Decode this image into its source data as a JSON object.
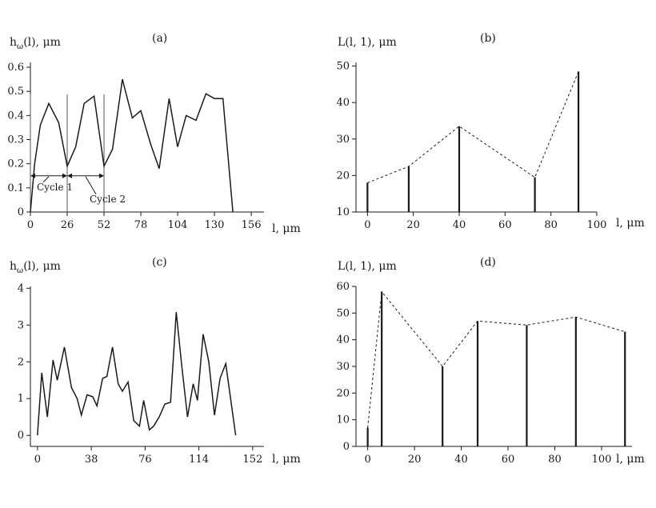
{
  "chart_data": [
    {
      "id": "a",
      "type": "line",
      "panel_label": "(a)",
      "ylabel": "h_ω(l), μm",
      "xlabel": "l, μm",
      "xlim": [
        0,
        165
      ],
      "ylim": [
        0,
        0.62
      ],
      "xticks": [
        0,
        26,
        52,
        78,
        104,
        130,
        156
      ],
      "yticks": [
        0,
        0.1,
        0.2,
        0.3,
        0.4,
        0.5,
        0.6
      ],
      "x": [
        0,
        3,
        7,
        13,
        20,
        26,
        32,
        38,
        45,
        52,
        58,
        65,
        72,
        78,
        85,
        91,
        98,
        104,
        110,
        117,
        124,
        130,
        136,
        143
      ],
      "values": [
        0,
        0.2,
        0.36,
        0.45,
        0.37,
        0.19,
        0.27,
        0.45,
        0.48,
        0.19,
        0.26,
        0.55,
        0.39,
        0.42,
        0.28,
        0.18,
        0.47,
        0.27,
        0.4,
        0.38,
        0.49,
        0.47,
        0.47,
        0
      ],
      "markers": [
        0,
        26,
        52
      ],
      "annotations": [
        {
          "label": "Cycle 1",
          "from": 0,
          "to": 26,
          "y": 0.15
        },
        {
          "label": "Cycle 2",
          "from": 26,
          "to": 52,
          "y": 0.15
        }
      ]
    },
    {
      "id": "b",
      "type": "bar",
      "panel_label": "(b)",
      "ylabel": "L(l, 1), μm",
      "xlabel": "l, μm",
      "xlim": [
        -5,
        100
      ],
      "ylim": [
        10,
        51
      ],
      "xticks": [
        0,
        20,
        40,
        60,
        80,
        100
      ],
      "yticks": [
        10,
        20,
        30,
        40,
        50
      ],
      "x": [
        0,
        18,
        40,
        73,
        92
      ],
      "values": [
        18,
        22.5,
        33.5,
        19.5,
        48.5
      ]
    },
    {
      "id": "c",
      "type": "line",
      "panel_label": "(c)",
      "ylabel": "h_ω(l), μm",
      "xlabel": "l, μm",
      "xlim": [
        -5,
        160
      ],
      "ylim": [
        -0.3,
        4.05
      ],
      "xticks": [
        0,
        38,
        76,
        114,
        152
      ],
      "yticks": [
        0,
        1,
        2,
        3,
        4
      ],
      "x": [
        0,
        3,
        7,
        11,
        14,
        19,
        24,
        28,
        31,
        35,
        39,
        42,
        46,
        49,
        53,
        57,
        60,
        64,
        68,
        72,
        75,
        79,
        82,
        86,
        90,
        94,
        98,
        102,
        106,
        110,
        113,
        117,
        121,
        125,
        129,
        133,
        140
      ],
      "values": [
        0,
        1.7,
        0.5,
        2.05,
        1.5,
        2.4,
        1.3,
        1.0,
        0.55,
        1.1,
        1.05,
        0.8,
        1.55,
        1.6,
        2.4,
        1.4,
        1.2,
        1.45,
        0.4,
        0.25,
        0.95,
        0.15,
        0.25,
        0.5,
        0.85,
        0.9,
        3.35,
        1.85,
        0.5,
        1.4,
        0.95,
        2.75,
        2.0,
        0.55,
        1.55,
        1.95,
        0
      ]
    },
    {
      "id": "d",
      "type": "bar",
      "panel_label": "(d)",
      "ylabel": "L(l, 1), μm",
      "xlabel": "l, μm",
      "xlim": [
        -5,
        113
      ],
      "ylim": [
        0,
        60
      ],
      "xticks": [
        0,
        20,
        40,
        60,
        80,
        100
      ],
      "yticks": [
        0,
        10,
        20,
        30,
        40,
        50,
        60
      ],
      "x": [
        0,
        6,
        32,
        47,
        68,
        89,
        110
      ],
      "values": [
        7,
        58,
        30,
        47,
        45.5,
        48.5,
        43
      ]
    }
  ]
}
